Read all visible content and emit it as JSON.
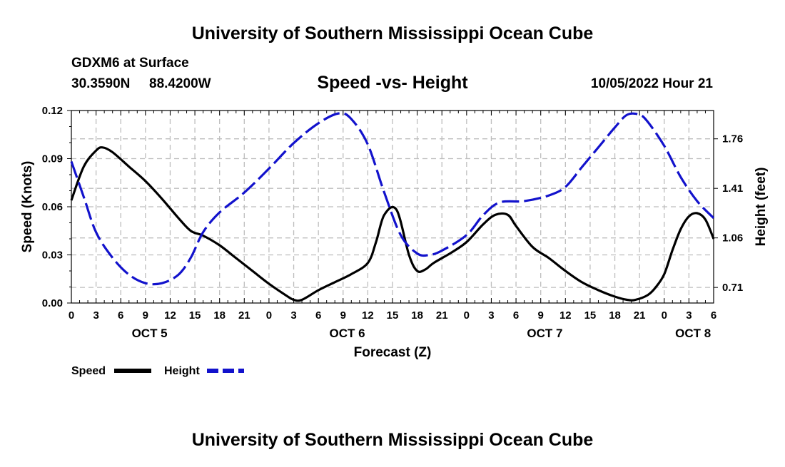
{
  "header": {
    "title": "University of Southern Mississippi Ocean Cube",
    "station": "GDXM6 at Surface",
    "latitude": "30.3590N",
    "longitude": "88.4200W",
    "valid_time": "10/05/2022 Hour 21",
    "footer_title": "University of Southern Mississippi Ocean Cube"
  },
  "chart_data": {
    "type": "line",
    "title": "Speed -vs- Height",
    "xlabel": "Forecast (Z)",
    "ylabel_left": "Speed (Knots)",
    "ylabel_right": "Height (feet)",
    "x_range_hours": [
      0,
      78
    ],
    "x_tick_labels": [
      "0",
      "3",
      "6",
      "9",
      "12",
      "15",
      "18",
      "21",
      "0",
      "3",
      "6",
      "9",
      "12",
      "15",
      "18",
      "21",
      "0",
      "3",
      "6",
      "9",
      "12",
      "15",
      "18",
      "21",
      "0",
      "3",
      "6"
    ],
    "date_labels": [
      {
        "label": "OCT 5",
        "hour": 9.5
      },
      {
        "label": "OCT 6",
        "hour": 33.5
      },
      {
        "label": "OCT 7",
        "hour": 57.5
      },
      {
        "label": "OCT 8",
        "hour": 75.5
      }
    ],
    "left_axis": {
      "min": 0,
      "max": 0.12,
      "ticks": [
        "0.00",
        "0.03",
        "0.06",
        "0.09",
        "0.12"
      ],
      "tick_values": [
        0,
        0.03,
        0.06,
        0.09,
        0.12
      ]
    },
    "right_axis": {
      "min": 0.6,
      "max": 1.96,
      "ticks": [
        "0.71",
        "1.06",
        "1.41",
        "1.76"
      ],
      "tick_values": [
        0.71,
        1.06,
        1.41,
        1.76
      ]
    },
    "grid": true,
    "series": [
      {
        "name": "Speed",
        "axis": "left",
        "color": "#000000",
        "dash": "solid",
        "x": [
          0,
          1.5,
          3,
          3.8,
          5,
          7,
          9,
          11,
          13,
          14.5,
          16,
          18,
          20,
          22,
          24,
          26,
          27,
          28,
          30,
          32,
          34,
          36,
          37,
          38,
          39.5,
          41,
          42,
          43,
          44,
          46,
          48,
          50,
          51.5,
          53,
          54,
          56,
          58,
          60,
          62,
          64,
          66,
          67.5,
          68.5,
          70,
          71,
          72,
          73,
          74,
          75,
          76,
          77,
          78
        ],
        "values": [
          0.064,
          0.085,
          0.095,
          0.097,
          0.094,
          0.085,
          0.076,
          0.065,
          0.053,
          0.045,
          0.042,
          0.036,
          0.028,
          0.02,
          0.012,
          0.005,
          0.002,
          0.002,
          0.008,
          0.013,
          0.018,
          0.025,
          0.038,
          0.055,
          0.058,
          0.03,
          0.02,
          0.021,
          0.025,
          0.031,
          0.038,
          0.049,
          0.055,
          0.055,
          0.048,
          0.035,
          0.028,
          0.02,
          0.013,
          0.008,
          0.004,
          0.002,
          0.002,
          0.005,
          0.01,
          0.018,
          0.033,
          0.046,
          0.054,
          0.056,
          0.052,
          0.04
        ]
      },
      {
        "name": "Height",
        "axis": "right",
        "color": "#1212cc",
        "dash": "dashed",
        "x": [
          0,
          1.5,
          3,
          5,
          7,
          9,
          11,
          13,
          14.5,
          16,
          18,
          21,
          24,
          27,
          30,
          32.5,
          34,
          36,
          38,
          40,
          42,
          43.5,
          45,
          48,
          50,
          52,
          55,
          58,
          60,
          62,
          64,
          66,
          67.5,
          69,
          70,
          72,
          74,
          76,
          78
        ],
        "values": [
          1.6,
          1.35,
          1.1,
          0.92,
          0.8,
          0.74,
          0.74,
          0.8,
          0.92,
          1.1,
          1.24,
          1.38,
          1.55,
          1.73,
          1.87,
          1.94,
          1.9,
          1.72,
          1.38,
          1.08,
          0.95,
          0.94,
          0.97,
          1.08,
          1.22,
          1.31,
          1.32,
          1.36,
          1.42,
          1.56,
          1.7,
          1.84,
          1.93,
          1.93,
          1.88,
          1.71,
          1.49,
          1.32,
          1.2
        ]
      }
    ],
    "legend_position": "bottom-left"
  }
}
